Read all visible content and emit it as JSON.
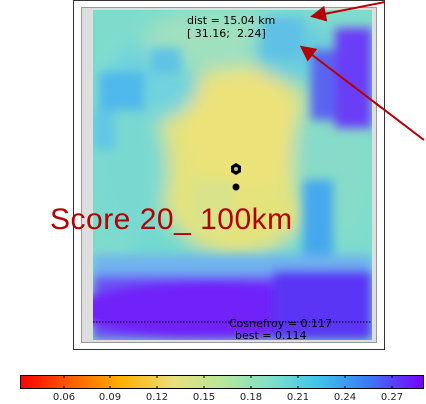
{
  "map": {
    "distance_label": "dist = 15.04 km",
    "coord_label": "[ 31.16;  2.24]",
    "station_label": "Cosnefroy = 0.117",
    "best_label": "best = 0.114"
  },
  "overlay": {
    "score_text": "Score 20_ 100km",
    "score_color": "#b30000",
    "arrow_color": "#b30000"
  },
  "colorbar": {
    "colormap": "rainbow (red low → purple high)",
    "ticks": [
      "0.06",
      "0.09",
      "0.12",
      "0.15",
      "0.18",
      "0.21",
      "0.24",
      "0.27"
    ]
  }
}
